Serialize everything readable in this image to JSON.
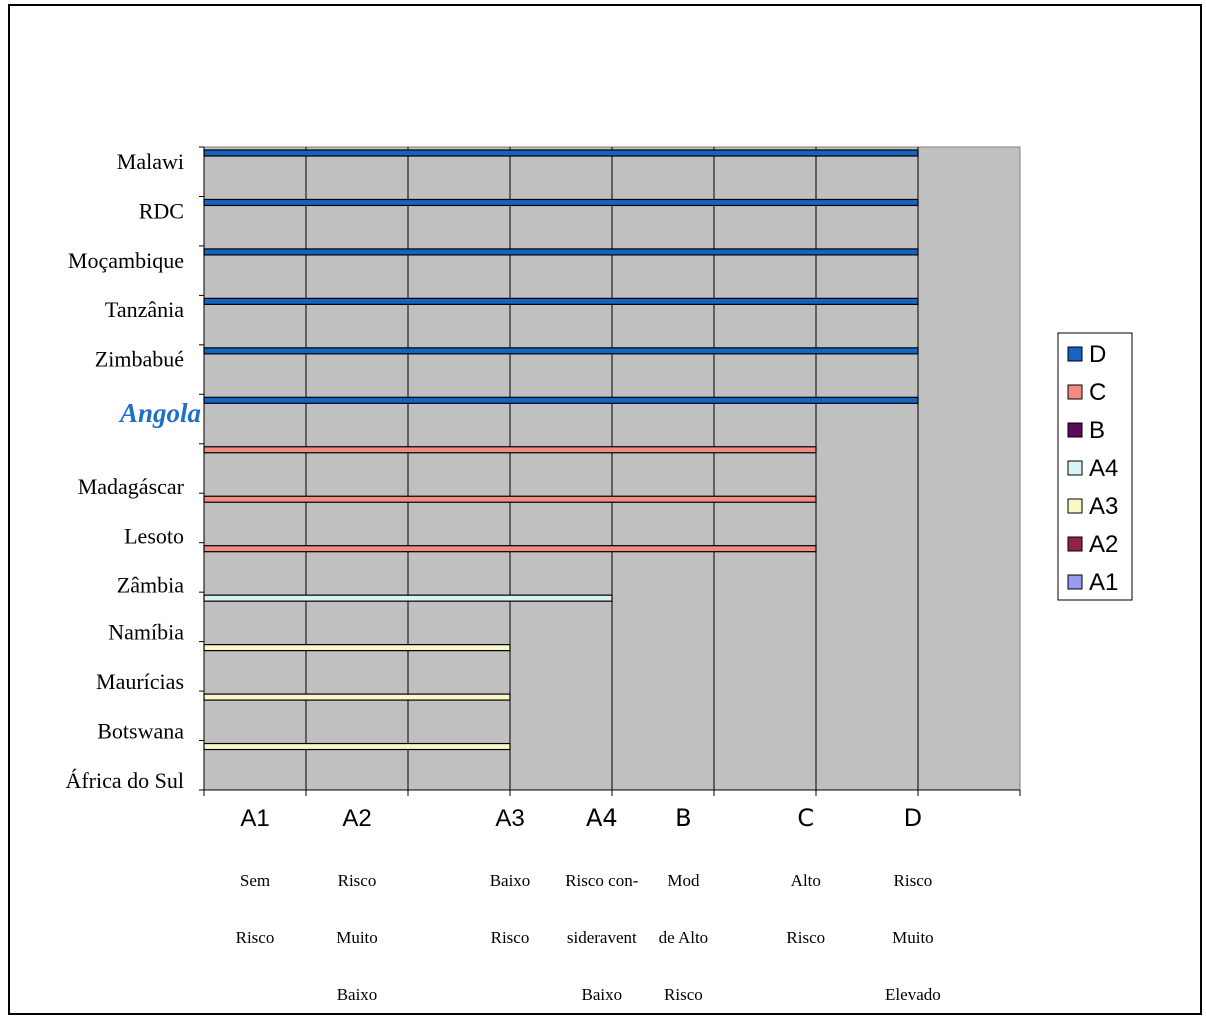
{
  "chart_data": {
    "type": "bar",
    "orientation": "horizontal",
    "categories": [
      "Malawi",
      "RDC",
      "Moçambique",
      "Tanzânia",
      "Zimbabué",
      "Angola",
      "Madagáscar",
      "Lesoto",
      "Zâmbia",
      "Namíbia",
      "Maurícias",
      "Botswana",
      "África do Sul"
    ],
    "highlight_category": "Angola",
    "highlight_color": "#1f6fc5",
    "values": [
      7,
      7,
      7,
      7,
      7,
      7,
      6,
      6,
      6,
      4,
      3,
      3,
      3
    ],
    "bar_class": [
      "D",
      "D",
      "D",
      "D",
      "D",
      "D",
      "C",
      "C",
      "C",
      "A4",
      "A3",
      "A3",
      "A3"
    ],
    "xlim": [
      0,
      8
    ],
    "x_ticks": [
      {
        "code": "A1",
        "value": 0.5,
        "lines": [
          "Sem",
          "Risco"
        ]
      },
      {
        "code": "A2",
        "value": 1.5,
        "lines": [
          "Risco",
          "Muito",
          "Baixo"
        ]
      },
      {
        "code": "A3",
        "value": 3,
        "lines": [
          "Baixo",
          "Risco"
        ]
      },
      {
        "code": "A4",
        "value": 3.9,
        "lines": [
          "Risco con-",
          "sideravent",
          "Baixo"
        ]
      },
      {
        "code": "B",
        "value": 4.7,
        "lines": [
          "Mod",
          "de Alto",
          "Risco"
        ]
      },
      {
        "code": "C",
        "value": 5.9,
        "lines": [
          "Alto",
          "Risco"
        ]
      },
      {
        "code": "D",
        "value": 6.95,
        "lines": [
          "Risco",
          "Muito",
          "Elevado"
        ]
      }
    ],
    "legend": {
      "placement": "right",
      "items": [
        {
          "name": "D",
          "color": "#1565c0"
        },
        {
          "name": "C",
          "color": "#f28b82"
        },
        {
          "name": "B",
          "color": "#5c0a5c"
        },
        {
          "name": "A4",
          "color": "#d9f4f4"
        },
        {
          "name": "A3",
          "color": "#fbf8c8"
        },
        {
          "name": "A2",
          "color": "#8e2444"
        },
        {
          "name": "A1",
          "color": "#9a9cf0"
        }
      ]
    },
    "plot_background": "#c0c0c0",
    "grid": true
  }
}
